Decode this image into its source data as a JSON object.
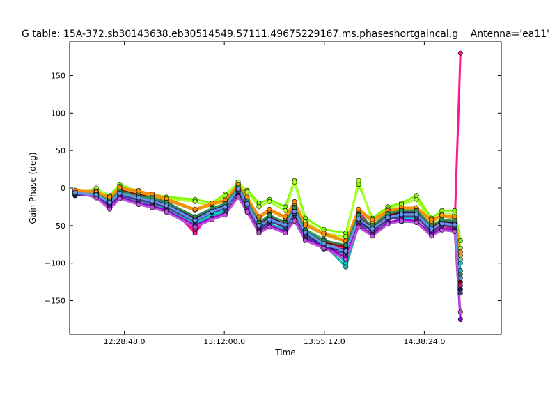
{
  "chart_data": {
    "type": "line",
    "title": "G table: 15A-372.sb30143638.eb30514549.57111.49675229167.ms.phaseshortgaincal.g",
    "title_right": "Antenna='ea11'",
    "xlabel": "Time",
    "ylabel": "Gain Phase (deg)",
    "ylim": [
      -195,
      195
    ],
    "xlim": [
      "12:05:10",
      "15:11:40"
    ],
    "xticks": [
      {
        "value": "12:28:48",
        "label": "12:28:48.0"
      },
      {
        "value": "13:12:00",
        "label": "13:12:00.0"
      },
      {
        "value": "13:55:12",
        "label": "13:55:12.0"
      },
      {
        "value": "14:38:24",
        "label": "14:38:24.0"
      }
    ],
    "yticks": [
      -150,
      -100,
      -50,
      0,
      50,
      100,
      150
    ],
    "grid": false,
    "legend": "none",
    "x": [
      "12:07:30",
      "12:16:40",
      "12:22:30",
      "12:26:50",
      "12:35:00",
      "12:40:50",
      "12:47:00",
      "12:59:20",
      "13:06:40",
      "13:12:20",
      "13:18:00",
      "13:21:50",
      "13:27:00",
      "13:31:30",
      "13:38:20",
      "13:42:20",
      "13:47:00",
      "13:55:00",
      "14:04:30",
      "14:10:00",
      "14:16:00",
      "14:22:40",
      "14:28:30",
      "14:35:00",
      "14:41:30",
      "14:46:00",
      "14:51:30",
      "14:54:00"
    ],
    "series": [
      {
        "color": "#7cfc00",
        "values": [
          -10,
          -2,
          -10,
          5,
          -5,
          -8,
          -12,
          -15,
          -20,
          -8,
          5,
          -3,
          -20,
          -15,
          -25,
          10,
          -40,
          -55,
          -60,
          5,
          -40,
          -25,
          -20,
          -10,
          -40,
          -30,
          -30,
          -70
        ]
      },
      {
        "color": "#adff2f",
        "values": [
          -8,
          0,
          -12,
          2,
          -3,
          -10,
          -14,
          -18,
          -25,
          -10,
          8,
          -5,
          -25,
          -18,
          -30,
          8,
          -45,
          -60,
          -65,
          10,
          -45,
          -28,
          -22,
          -15,
          -45,
          -35,
          -35,
          -80
        ]
      },
      {
        "color": "#ff1493",
        "values": [
          -5,
          -4,
          -15,
          -2,
          -10,
          -15,
          -20,
          -60,
          -30,
          -25,
          0,
          -15,
          -55,
          -35,
          -50,
          -20,
          -60,
          -75,
          -80,
          -30,
          -55,
          -35,
          -30,
          -30,
          -55,
          -45,
          -50,
          180
        ]
      },
      {
        "color": "#c71585",
        "values": [
          -6,
          -6,
          -18,
          -5,
          -12,
          -18,
          -25,
          -55,
          -35,
          -28,
          -3,
          -20,
          -60,
          -40,
          -55,
          -25,
          -65,
          -80,
          -85,
          -35,
          -60,
          -40,
          -35,
          -35,
          -60,
          -50,
          -55,
          -130
        ]
      },
      {
        "color": "#00ced1",
        "values": [
          -4,
          -8,
          -20,
          -8,
          -15,
          -20,
          -25,
          -45,
          -35,
          -30,
          -5,
          -25,
          -50,
          -45,
          -50,
          -35,
          -60,
          -70,
          -100,
          -45,
          -50,
          -40,
          -40,
          -40,
          -55,
          -50,
          -50,
          -100
        ]
      },
      {
        "color": "#20b2aa",
        "values": [
          -7,
          -10,
          -22,
          -10,
          -18,
          -22,
          -28,
          -48,
          -38,
          -32,
          -8,
          -28,
          -55,
          -48,
          -55,
          -40,
          -65,
          -75,
          -105,
          -50,
          -55,
          -45,
          -45,
          -45,
          -60,
          -55,
          -55,
          -110
        ]
      },
      {
        "color": "#66cdaa",
        "values": [
          -3,
          -5,
          -18,
          -4,
          -12,
          -14,
          -20,
          -40,
          -30,
          -26,
          -2,
          -22,
          -45,
          -40,
          -45,
          -30,
          -55,
          -68,
          -90,
          -40,
          -48,
          -38,
          -36,
          -38,
          -50,
          -46,
          -48,
          -95
        ]
      },
      {
        "color": "#8b0000",
        "values": [
          -9,
          -7,
          -16,
          -3,
          -9,
          -12,
          -18,
          -40,
          -28,
          -22,
          2,
          -18,
          -48,
          -38,
          -48,
          -28,
          -58,
          -72,
          -78,
          -38,
          -52,
          -36,
          -32,
          -32,
          -52,
          -44,
          -46,
          -125
        ]
      },
      {
        "color": "#191970",
        "values": [
          -10,
          -9,
          -20,
          -6,
          -14,
          -16,
          -22,
          -42,
          -30,
          -24,
          0,
          -20,
          -52,
          -40,
          -50,
          -30,
          -60,
          -80,
          -82,
          -42,
          -56,
          -38,
          -34,
          -34,
          -56,
          -46,
          -48,
          -135
        ]
      },
      {
        "color": "#483d8b",
        "values": [
          -8,
          -11,
          -24,
          -9,
          -16,
          -19,
          -26,
          -44,
          -32,
          -27,
          -4,
          -24,
          -56,
          -44,
          -52,
          -34,
          -62,
          -82,
          -86,
          -46,
          -58,
          -42,
          -38,
          -38,
          -58,
          -48,
          -52,
          -140
        ]
      },
      {
        "color": "#9400d3",
        "values": [
          -6,
          -12,
          -26,
          -12,
          -20,
          -24,
          -30,
          -50,
          -40,
          -34,
          -10,
          -30,
          -58,
          -50,
          -58,
          -42,
          -68,
          -78,
          -92,
          -50,
          -62,
          -46,
          -42,
          -44,
          -62,
          -54,
          -56,
          -175
        ]
      },
      {
        "color": "#ba55d3",
        "values": [
          -5,
          -13,
          -28,
          -14,
          -22,
          -26,
          -32,
          -52,
          -42,
          -36,
          -12,
          -32,
          -60,
          -52,
          -60,
          -44,
          -70,
          -80,
          -95,
          -52,
          -64,
          -48,
          -44,
          -46,
          -64,
          -56,
          -58,
          -165
        ]
      },
      {
        "color": "#daa520",
        "values": [
          -4,
          -6,
          -14,
          0,
          -6,
          -10,
          -16,
          -30,
          -22,
          -18,
          4,
          -14,
          -40,
          -30,
          -40,
          -20,
          -50,
          -62,
          -72,
          -30,
          -45,
          -32,
          -28,
          -28,
          -45,
          -38,
          -40,
          -90
        ]
      },
      {
        "color": "#ff8c00",
        "values": [
          -3,
          -5,
          -12,
          1,
          -4,
          -8,
          -14,
          -28,
          -20,
          -16,
          5,
          -12,
          -38,
          -28,
          -38,
          -18,
          -48,
          -60,
          -70,
          -28,
          -42,
          -30,
          -26,
          -26,
          -42,
          -36,
          -38,
          -85
        ]
      },
      {
        "color": "#2e8b57",
        "values": [
          -7,
          -8,
          -17,
          -4,
          -11,
          -13,
          -19,
          -38,
          -27,
          -21,
          1,
          -17,
          -46,
          -36,
          -46,
          -26,
          -56,
          -70,
          -76,
          -36,
          -50,
          -34,
          -30,
          -30,
          -50,
          -42,
          -44,
          -115
        ]
      },
      {
        "color": "#6495ed",
        "values": [
          -6,
          -9,
          -19,
          -7,
          -13,
          -17,
          -23,
          -43,
          -31,
          -25,
          -1,
          -21,
          -50,
          -42,
          -49,
          -31,
          -59,
          -74,
          -84,
          -41,
          -54,
          -39,
          -35,
          -35,
          -54,
          -47,
          -49,
          -120
        ]
      }
    ]
  }
}
